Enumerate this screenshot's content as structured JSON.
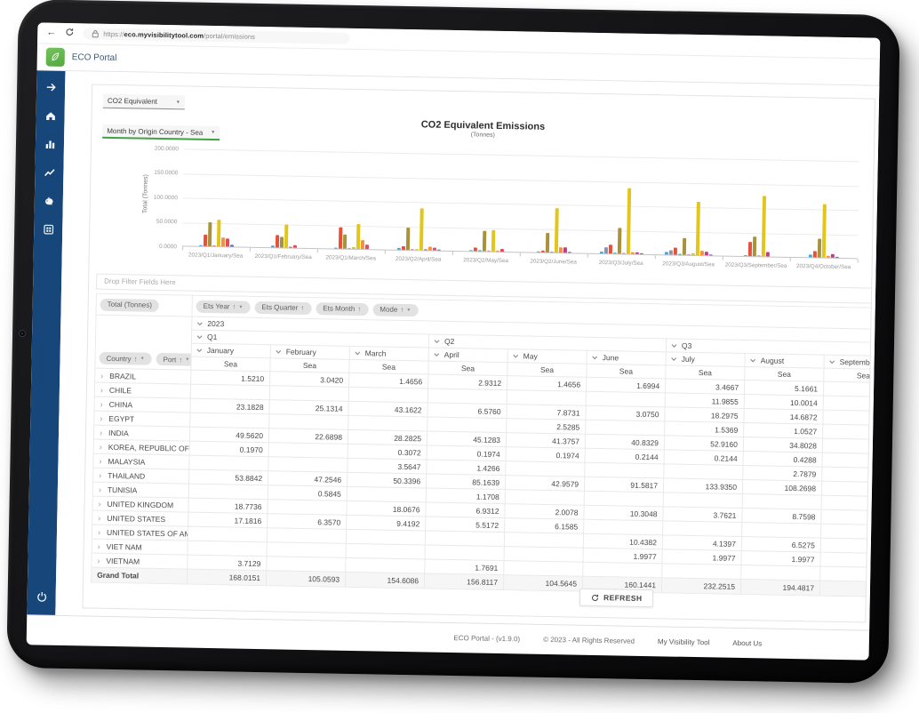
{
  "browser": {
    "url": "https://eco.myvisibilitytool.com/portal/emissions",
    "url_prefix": "https://",
    "url_domain": "eco.myvisibilitytool.com",
    "url_path": "/portal/emissions"
  },
  "header": {
    "app_name": "ECO Portal",
    "logo_icon": "leaf-icon"
  },
  "sidebar": {
    "icons": [
      "expand-arrow-icon",
      "home-icon",
      "bar-chart-icon",
      "line-chart-icon",
      "piggy-bank-icon",
      "grid-icon"
    ],
    "bottom_icon": "power-icon"
  },
  "controls": {
    "measure_select": {
      "value": "CO2 Equivalent"
    },
    "view_select": {
      "value": "Month by Origin Country - Sea"
    },
    "refresh_button": {
      "label": "REFRESH",
      "icon": "refresh-icon"
    }
  },
  "chart_data": {
    "type": "bar",
    "title": "CO2 Equivalent Emissions",
    "subtitle": "(Tonnes)",
    "ylabel": "Total (Tonnes)",
    "ylim": [
      0,
      200
    ],
    "yticks": [
      "200.0000",
      "150.0000",
      "100.0000",
      "50.0000",
      "0.0000"
    ],
    "grid": true,
    "legend": "none",
    "categories": [
      "2023/Q1/January/Sea",
      "2023/Q1/February/Sea",
      "2023/Q1/March/Sea",
      "2023/Q2/April/Sea",
      "2023/Q2/May/Sea",
      "2023/Q2/June/Sea",
      "2023/Q3/July/Sea",
      "2023/Q3/August/Sea",
      "2023/Q3/September/Sea",
      "2023/Q4/October/Sea"
    ],
    "series": [
      {
        "name": "BRAZIL",
        "color": "#41a8e0",
        "values": [
          1.521,
          3.042,
          1.4656,
          2.9312,
          1.4656,
          1.6994,
          3.4667,
          5.1661,
          1.0,
          5.0
        ]
      },
      {
        "name": "CHILE",
        "color": "#8e93ad",
        "values": [
          null,
          null,
          null,
          null,
          null,
          null,
          11.9855,
          10.0014,
          null,
          null
        ]
      },
      {
        "name": "CHINA",
        "color": "#e8503a",
        "values": [
          23.1828,
          25.1314,
          43.1622,
          6.576,
          7.8731,
          3.075,
          18.2975,
          14.6872,
          29.5,
          12.0
        ]
      },
      {
        "name": "EGYPT",
        "color": "#3aa58b",
        "values": [
          null,
          null,
          null,
          null,
          2.5285,
          null,
          1.5369,
          1.0527,
          null,
          null
        ]
      },
      {
        "name": "INDIA",
        "color": "#a8923c",
        "values": [
          49.562,
          22.6898,
          28.2825,
          45.1283,
          41.3757,
          40.8329,
          52.916,
          34.8028,
          40.0,
          38.0
        ]
      },
      {
        "name": "KOREA, REPUBLIC OF",
        "color": "#c98bc7",
        "values": [
          0.197,
          null,
          0.3072,
          0.1974,
          0.1974,
          0.2144,
          0.2144,
          0.4288,
          0.2,
          null
        ]
      },
      {
        "name": "MALAYSIA",
        "color": "#c3c93e",
        "values": [
          null,
          null,
          3.5647,
          1.4266,
          null,
          null,
          null,
          2.7879,
          null,
          null
        ]
      },
      {
        "name": "THAILAND",
        "color": "#e3c61c",
        "values": [
          53.8842,
          47.2546,
          50.3396,
          85.1639,
          42.9579,
          91.5817,
          133.935,
          108.2698,
          124.0,
          110.0
        ]
      },
      {
        "name": "TUNISIA",
        "color": "#97695f",
        "values": [
          null,
          0.5845,
          null,
          1.1708,
          null,
          null,
          null,
          null,
          null,
          null
        ]
      },
      {
        "name": "UNITED KINGDOM",
        "color": "#f0923e",
        "values": [
          18.7736,
          null,
          18.0676,
          6.9312,
          2.0078,
          10.3048,
          3.7621,
          8.7598,
          null,
          4.0
        ]
      },
      {
        "name": "UNITED STATES",
        "color": "#e2485e",
        "values": [
          17.1816,
          6.357,
          9.4192,
          5.5172,
          6.1585,
          null,
          null,
          null,
          null,
          null
        ]
      },
      {
        "name": "UNITED STATES OF AMERICA",
        "color": "#c23a8c",
        "values": [
          null,
          null,
          null,
          null,
          null,
          10.4382,
          4.1397,
          6.5275,
          10.0,
          8.0
        ]
      },
      {
        "name": "VIET NAM",
        "color": "#7a51a8",
        "values": [
          null,
          null,
          null,
          null,
          null,
          1.9977,
          1.9977,
          1.9977,
          null,
          1.5
        ]
      },
      {
        "name": "VIETNAM",
        "color": "#5a68c0",
        "values": [
          3.7129,
          null,
          null,
          1.7691,
          null,
          null,
          null,
          null,
          null,
          null
        ]
      }
    ]
  },
  "pivot": {
    "drop_filter_text": "Drop Filter Fields Here",
    "data_chip": "Total (Tonnes)",
    "column_chips": [
      {
        "label": "Ets Year",
        "sort": true,
        "filter": true
      },
      {
        "label": "Ets Quarter",
        "sort": true,
        "filter": false
      },
      {
        "label": "Ets Month",
        "sort": true,
        "filter": false
      },
      {
        "label": "Mode",
        "sort": true,
        "filter": true
      }
    ],
    "row_chips": [
      {
        "label": "Country",
        "sort": true,
        "filter": true
      },
      {
        "label": "Port",
        "sort": true,
        "filter": true
      }
    ],
    "year": "2023",
    "quarters": [
      {
        "label": "Q1",
        "months": [
          "January",
          "February",
          "March"
        ]
      },
      {
        "label": "Q2",
        "months": [
          "April",
          "May",
          "June"
        ]
      },
      {
        "label": "Q3",
        "months": [
          "July",
          "August",
          "September"
        ]
      }
    ],
    "months": [
      "January",
      "February",
      "March",
      "April",
      "May",
      "June",
      "July",
      "August",
      "September"
    ],
    "mode_label": "Sea",
    "rows": [
      {
        "country": "BRAZIL",
        "values": [
          "1.5210",
          "3.0420",
          "1.4656",
          "2.9312",
          "1.4656",
          "1.6994",
          "3.4667",
          "5.1661",
          ""
        ]
      },
      {
        "country": "CHILE",
        "values": [
          "",
          "",
          "",
          "",
          "",
          "",
          "11.9855",
          "10.0014",
          ""
        ]
      },
      {
        "country": "CHINA",
        "values": [
          "23.1828",
          "25.1314",
          "43.1622",
          "6.5760",
          "7.8731",
          "3.0750",
          "18.2975",
          "14.6872",
          ""
        ]
      },
      {
        "country": "EGYPT",
        "values": [
          "",
          "",
          "",
          "",
          "2.5285",
          "",
          "1.5369",
          "1.0527",
          ""
        ]
      },
      {
        "country": "INDIA",
        "values": [
          "49.5620",
          "22.6898",
          "28.2825",
          "45.1283",
          "41.3757",
          "40.8329",
          "52.9160",
          "34.8028",
          ""
        ]
      },
      {
        "country": "KOREA, REPUBLIC OF",
        "values": [
          "0.1970",
          "",
          "0.3072",
          "0.1974",
          "0.1974",
          "0.2144",
          "0.2144",
          "0.4288",
          ""
        ]
      },
      {
        "country": "MALAYSIA",
        "values": [
          "",
          "",
          "3.5647",
          "1.4266",
          "",
          "",
          "",
          "2.7879",
          ""
        ]
      },
      {
        "country": "THAILAND",
        "values": [
          "53.8842",
          "47.2546",
          "50.3396",
          "85.1639",
          "42.9579",
          "91.5817",
          "133.9350",
          "108.2698",
          ""
        ]
      },
      {
        "country": "TUNISIA",
        "values": [
          "",
          "0.5845",
          "",
          "1.1708",
          "",
          "",
          "",
          "",
          ""
        ]
      },
      {
        "country": "UNITED KINGDOM",
        "values": [
          "18.7736",
          "",
          "18.0676",
          "6.9312",
          "2.0078",
          "10.3048",
          "3.7621",
          "8.7598",
          ""
        ]
      },
      {
        "country": "UNITED STATES",
        "values": [
          "17.1816",
          "6.3570",
          "9.4192",
          "5.5172",
          "6.1585",
          "",
          "",
          "",
          ""
        ]
      },
      {
        "country": "UNITED STATES OF AMERICA",
        "values": [
          "",
          "",
          "",
          "",
          "",
          "10.4382",
          "4.1397",
          "6.5275",
          ""
        ]
      },
      {
        "country": "VIET NAM",
        "values": [
          "",
          "",
          "",
          "",
          "",
          "1.9977",
          "1.9977",
          "1.9977",
          ""
        ]
      },
      {
        "country": "VIETNAM",
        "values": [
          "3.7129",
          "",
          "",
          "1.7691",
          "",
          "",
          "",
          "",
          ""
        ]
      }
    ],
    "grand_total": {
      "label": "Grand Total",
      "values": [
        "168.0151",
        "105.0593",
        "154.6086",
        "156.8117",
        "104.5645",
        "160.1441",
        "232.2515",
        "194.4817",
        ""
      ]
    }
  },
  "footer": {
    "version": "ECO Portal - (v1.9.0)",
    "copyright": "© 2023 - All Rights Reserved",
    "links": [
      {
        "label": "My Visibility Tool"
      },
      {
        "label": "About Us"
      }
    ]
  }
}
